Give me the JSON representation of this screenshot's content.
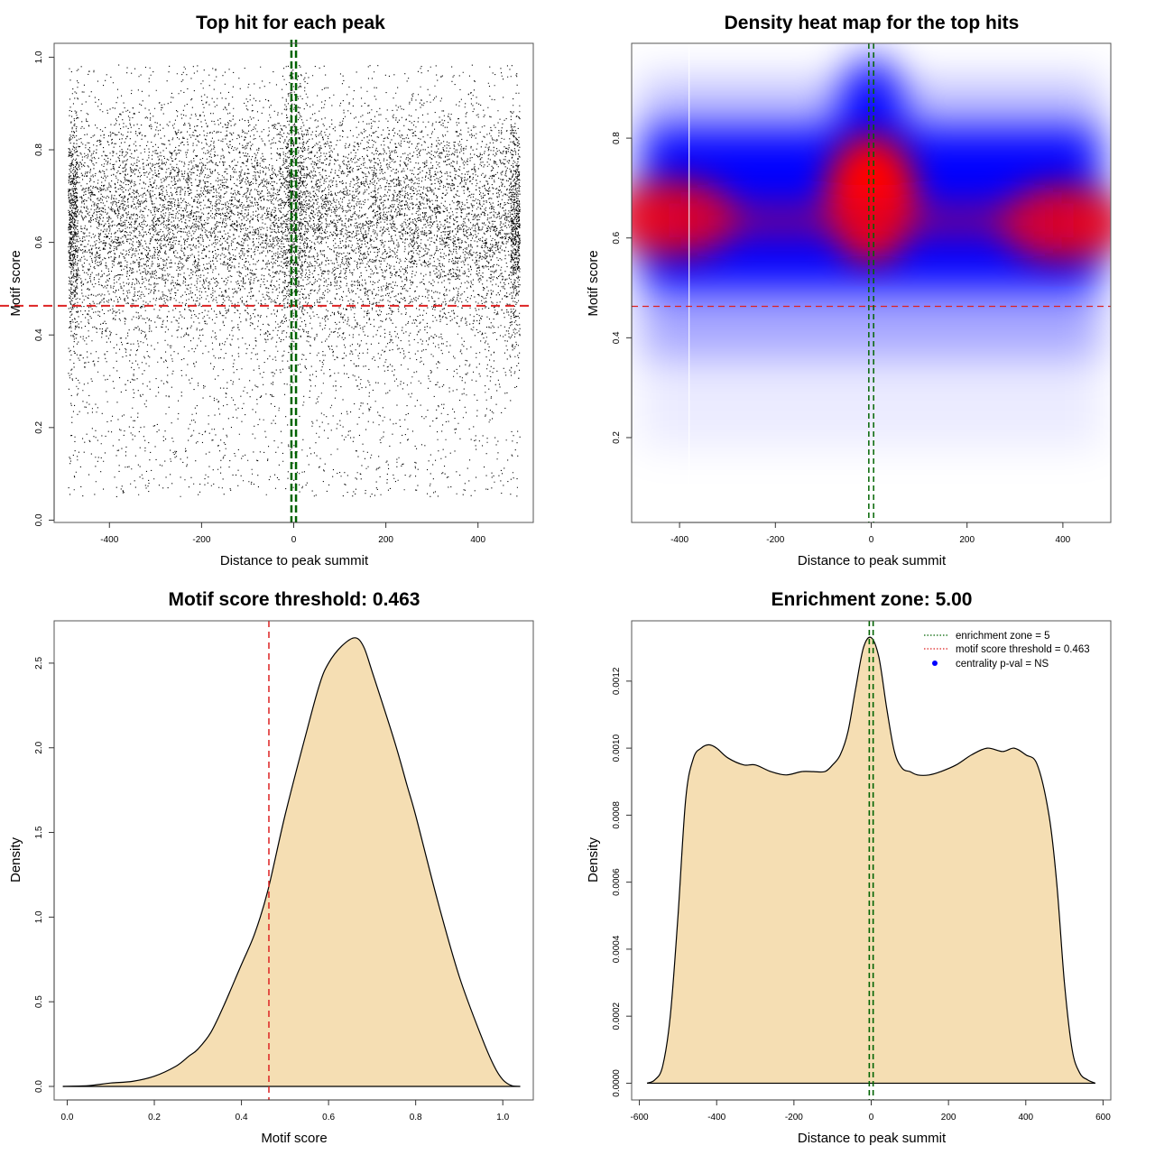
{
  "colors": {
    "fill": "#F5DEB3",
    "red_line": "#DD2222",
    "green_line": "#006400",
    "blue": "#0000FF",
    "point": "#000000"
  },
  "chart_data": [
    {
      "id": "scatter",
      "type": "scatter",
      "title": "Top hit for each peak",
      "xlabel": "Distance to peak summit",
      "ylabel": "Motif score",
      "xlim": [
        -520,
        520
      ],
      "ylim": [
        -0.005,
        1.03
      ],
      "xticks": [
        -400,
        -200,
        0,
        200,
        400
      ],
      "xtick_labels": [
        "-400",
        "-200",
        "0",
        "200",
        "400"
      ],
      "yticks": [
        0.0,
        0.2,
        0.4,
        0.6,
        0.8,
        1.0
      ],
      "ytick_labels": [
        "0.0",
        "0.2",
        "0.4",
        "0.6",
        "0.8",
        "1.0"
      ],
      "x_range_of_points": [
        -490,
        490
      ],
      "score_mode": 0.65,
      "threshold_line": 0.463,
      "enrichment_lines": [
        -5,
        5
      ]
    },
    {
      "id": "heatmap",
      "type": "heatmap",
      "title": "Density heat map for the top hits",
      "xlabel": "Distance to peak summit",
      "ylabel": "Motif score",
      "xlim": [
        -500,
        500
      ],
      "ylim": [
        0.03,
        0.99
      ],
      "xticks": [
        -400,
        -200,
        0,
        200,
        400
      ],
      "xtick_labels": [
        "-400",
        "-200",
        "0",
        "200",
        "400"
      ],
      "yticks": [
        0.2,
        0.4,
        0.6,
        0.8
      ],
      "ytick_labels": [
        "0.2",
        "0.4",
        "0.6",
        "0.8"
      ],
      "hotspots": [
        {
          "x": -410,
          "y": 0.64,
          "intensity": 0.85
        },
        {
          "x": 0,
          "y": 0.68,
          "intensity": 1.0
        },
        {
          "x": 400,
          "y": 0.63,
          "intensity": 0.85
        }
      ],
      "threshold_line": 0.463,
      "enrichment_lines": [
        -5,
        5
      ],
      "color_scale": [
        "#FFFFFF",
        "#0000FF",
        "#FF0000"
      ]
    },
    {
      "id": "score-density",
      "type": "area",
      "title": "Motif score threshold: 0.463",
      "xlabel": "Motif score",
      "ylabel": "Density",
      "xlim": [
        -0.03,
        1.07
      ],
      "ylim": [
        -0.08,
        2.75
      ],
      "xticks": [
        0.0,
        0.2,
        0.4,
        0.6,
        0.8,
        1.0
      ],
      "xtick_labels": [
        "0.0",
        "0.2",
        "0.4",
        "0.6",
        "0.8",
        "1.0"
      ],
      "yticks": [
        0.0,
        0.5,
        1.0,
        1.5,
        2.0,
        2.5
      ],
      "ytick_labels": [
        "0.0",
        "0.5",
        "1.0",
        "1.5",
        "2.0",
        "2.5"
      ],
      "x": [
        -0.01,
        0.05,
        0.1,
        0.15,
        0.2,
        0.25,
        0.28,
        0.3,
        0.33,
        0.36,
        0.4,
        0.43,
        0.46,
        0.5,
        0.55,
        0.58,
        0.6,
        0.63,
        0.66,
        0.68,
        0.7,
        0.75,
        0.78,
        0.8,
        0.85,
        0.9,
        0.95,
        0.98,
        1.0,
        1.02,
        1.04
      ],
      "y": [
        0.0,
        0.005,
        0.02,
        0.03,
        0.06,
        0.12,
        0.18,
        0.22,
        0.32,
        0.48,
        0.72,
        0.9,
        1.15,
        1.6,
        2.1,
        2.38,
        2.5,
        2.6,
        2.65,
        2.6,
        2.45,
        2.05,
        1.78,
        1.6,
        1.1,
        0.65,
        0.3,
        0.12,
        0.04,
        0.005,
        0.0
      ],
      "threshold_line": 0.463
    },
    {
      "id": "distance-density",
      "type": "area",
      "title": "Enrichment zone: 5.00",
      "xlabel": "Distance to peak summit",
      "ylabel": "Density",
      "xlim": [
        -620,
        620
      ],
      "ylim": [
        -5e-05,
        0.00138
      ],
      "xticks": [
        -600,
        -400,
        -200,
        0,
        200,
        400,
        600
      ],
      "xtick_labels": [
        "-600",
        "-400",
        "-200",
        "0",
        "200",
        "400",
        "600"
      ],
      "yticks": [
        0.0,
        0.0002,
        0.0004,
        0.0006,
        0.0008,
        0.001,
        0.0012
      ],
      "ytick_labels": [
        "0.0000",
        "0.0002",
        "0.0004",
        "0.0006",
        "0.0008",
        "0.0010",
        "0.0012"
      ],
      "x": [
        -580,
        -560,
        -540,
        -520,
        -500,
        -480,
        -460,
        -440,
        -420,
        -400,
        -370,
        -330,
        -300,
        -260,
        -220,
        -180,
        -150,
        -120,
        -100,
        -80,
        -60,
        -40,
        -20,
        0,
        20,
        40,
        60,
        80,
        100,
        120,
        150,
        180,
        220,
        260,
        300,
        340,
        370,
        400,
        430,
        460,
        480,
        500,
        520,
        540,
        560,
        580
      ],
      "y": [
        0.0,
        1e-05,
        5e-05,
        0.0002,
        0.0005,
        0.00085,
        0.00097,
        0.001,
        0.00101,
        0.001,
        0.00097,
        0.00095,
        0.00095,
        0.00093,
        0.00092,
        0.00093,
        0.00093,
        0.00093,
        0.00095,
        0.00098,
        0.00105,
        0.00118,
        0.0013,
        0.00133,
        0.00127,
        0.00112,
        0.00099,
        0.00094,
        0.00093,
        0.00092,
        0.00092,
        0.00093,
        0.00095,
        0.00098,
        0.001,
        0.00099,
        0.001,
        0.00098,
        0.00095,
        0.0008,
        0.0006,
        0.0003,
        0.0001,
        3e-05,
        1e-05,
        0.0
      ],
      "enrichment_lines": [
        -5,
        5
      ],
      "legend_position": "top-right",
      "legend": [
        {
          "label": "enrichment zone = 5",
          "style": "dotted-line",
          "color": "#006400"
        },
        {
          "label": "motif score threshold = 0.463",
          "style": "dotted-line",
          "color": "#DD2222"
        },
        {
          "label": "centrality p-val = NS",
          "style": "dot",
          "color": "#0000FF"
        }
      ]
    }
  ]
}
